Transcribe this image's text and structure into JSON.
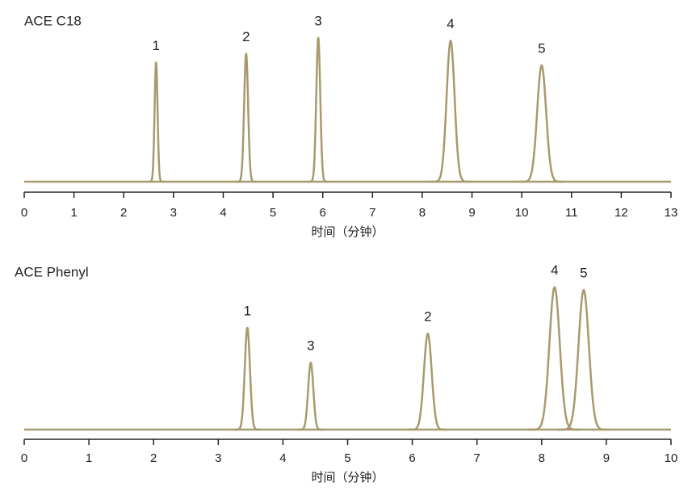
{
  "chart_data": [
    {
      "type": "line",
      "title": "ACE C18",
      "x_label": "时间（分钟）",
      "color": "#a89a6c",
      "xlim": [
        0,
        13
      ],
      "xticks": [
        0,
        1,
        2,
        3,
        4,
        5,
        6,
        7,
        8,
        9,
        10,
        11,
        12,
        13
      ],
      "ylim": [
        0,
        100
      ],
      "peak_labels": [
        "1",
        "2",
        "3",
        "4",
        "5"
      ],
      "x": [
        2.65,
        4.46,
        5.91,
        8.57,
        10.4
      ],
      "values": [
        82,
        88,
        99,
        97,
        80
      ],
      "peak_widths": [
        0.03,
        0.04,
        0.04,
        0.08,
        0.09
      ]
    },
    {
      "type": "line",
      "title": "ACE Phenyl",
      "x_label": "时间（分钟）",
      "color": "#a89a6c",
      "xlim": [
        0,
        10
      ],
      "xticks": [
        0,
        1,
        2,
        3,
        4,
        5,
        6,
        7,
        8,
        9,
        10
      ],
      "ylim": [
        0,
        100
      ],
      "peak_labels": [
        "1",
        "3",
        "2",
        "4",
        "5"
      ],
      "x": [
        3.45,
        4.43,
        6.24,
        8.2,
        8.65
      ],
      "values": [
        70,
        46,
        66,
        98,
        96
      ],
      "peak_widths": [
        0.04,
        0.04,
        0.06,
        0.08,
        0.08
      ]
    }
  ]
}
